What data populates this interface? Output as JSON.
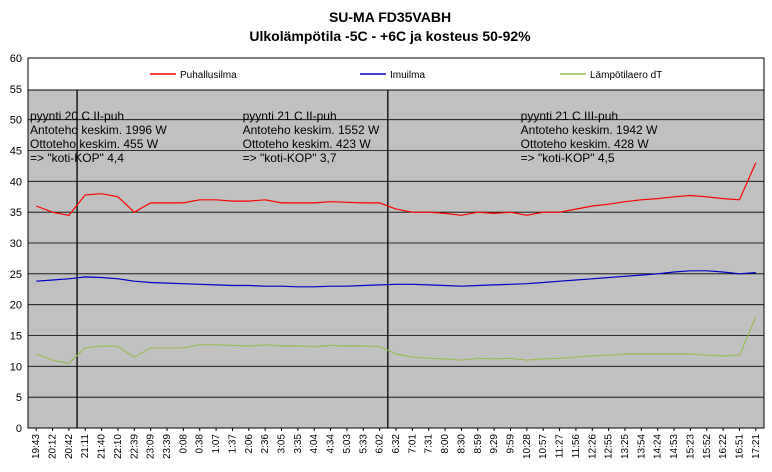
{
  "chart_data": {
    "type": "line",
    "title": "SU-MA FD35VABH",
    "subtitle": "Ulkolämpötila -5C - +6C ja kosteus 50-92%",
    "ylim": [
      0,
      60
    ],
    "yticks": [
      0,
      5,
      10,
      15,
      20,
      25,
      30,
      35,
      40,
      45,
      50,
      55,
      60
    ],
    "grid": true,
    "legend_placement": "top",
    "x_tick_labels": [
      "19:43",
      "20:12",
      "20:42",
      "21:11",
      "21:40",
      "22:10",
      "22:39",
      "23:09",
      "23:39",
      "0:08",
      "0:38",
      "1:07",
      "1:37",
      "2:06",
      "2:36",
      "3:05",
      "3:35",
      "4:04",
      "4:34",
      "5:03",
      "5:33",
      "6:02",
      "6:32",
      "7:01",
      "7:31",
      "8:00",
      "8:30",
      "8:59",
      "9:29",
      "9:59",
      "10:28",
      "10:57",
      "11:27",
      "11:56",
      "12:26",
      "12:55",
      "13:25",
      "13:54",
      "14:24",
      "14:53",
      "15:23",
      "15:52",
      "16:22",
      "16:51",
      "17:21"
    ],
    "period_dividers": [
      "21:11",
      "6:32"
    ],
    "annotations": [
      {
        "at": "19:43",
        "lines": [
          "pyynti 20 C II-puh",
          "Antoteho keskim. 1996 W",
          "Ottoteho keskim. 455 W",
          "=> \"koti-KOP\"  4,4"
        ]
      },
      {
        "at": "2:06",
        "lines": [
          "pyynti 21 C II-puh",
          "Antoteho keskim. 1552 W",
          "Ottoteho keskim. 423 W",
          "=> \"koti-KOP\" 3,7"
        ]
      },
      {
        "at": "10:28",
        "lines": [
          "pyynti 21 C III-puh",
          "Antoteho keskim. 1942 W",
          "Ottoteho keskim. 428 W",
          "=> \"koti-KOP\" 4,5"
        ]
      }
    ],
    "series": [
      {
        "name": "Puhallusilma",
        "color": "#ff0000",
        "x": [
          "19:43",
          "20:12",
          "20:42",
          "21:11",
          "21:40",
          "22:10",
          "22:39",
          "23:09",
          "23:39",
          "0:08",
          "0:38",
          "1:07",
          "1:37",
          "2:06",
          "2:36",
          "3:05",
          "3:35",
          "4:04",
          "4:34",
          "5:03",
          "5:33",
          "6:02",
          "6:32",
          "7:01",
          "7:31",
          "8:00",
          "8:30",
          "8:59",
          "9:29",
          "9:59",
          "10:28",
          "10:57",
          "11:27",
          "11:56",
          "12:26",
          "12:55",
          "13:25",
          "13:54",
          "14:24",
          "14:53",
          "15:23",
          "15:52",
          "16:22",
          "16:51",
          "17:21"
        ],
        "values": [
          36.0,
          35.0,
          34.5,
          37.8,
          38.0,
          37.5,
          35.0,
          36.5,
          36.5,
          36.5,
          37.0,
          37.0,
          36.8,
          36.8,
          37.0,
          36.5,
          36.5,
          36.5,
          36.7,
          36.6,
          36.5,
          36.5,
          35.5,
          35.0,
          35.0,
          34.8,
          34.5,
          35.0,
          34.8,
          35.0,
          34.5,
          35.0,
          35.0,
          35.5,
          36.0,
          36.3,
          36.7,
          37.0,
          37.2,
          37.5,
          37.7,
          37.5,
          37.2,
          37.0,
          43.0
        ]
      },
      {
        "name": "Imuilma",
        "color": "#0000cc",
        "x": [
          "19:43",
          "20:12",
          "20:42",
          "21:11",
          "21:40",
          "22:10",
          "22:39",
          "23:09",
          "23:39",
          "0:08",
          "0:38",
          "1:07",
          "1:37",
          "2:06",
          "2:36",
          "3:05",
          "3:35",
          "4:04",
          "4:34",
          "5:03",
          "5:33",
          "6:02",
          "6:32",
          "7:01",
          "7:31",
          "8:00",
          "8:30",
          "8:59",
          "9:29",
          "9:59",
          "10:28",
          "10:57",
          "11:27",
          "11:56",
          "12:26",
          "12:55",
          "13:25",
          "13:54",
          "14:24",
          "14:53",
          "15:23",
          "15:52",
          "16:22",
          "16:51",
          "17:21"
        ],
        "values": [
          23.8,
          24.0,
          24.2,
          24.5,
          24.4,
          24.2,
          23.8,
          23.6,
          23.5,
          23.4,
          23.3,
          23.2,
          23.1,
          23.1,
          23.0,
          23.0,
          22.9,
          22.9,
          23.0,
          23.0,
          23.1,
          23.2,
          23.3,
          23.3,
          23.2,
          23.1,
          23.0,
          23.1,
          23.2,
          23.3,
          23.4,
          23.6,
          23.8,
          24.0,
          24.2,
          24.4,
          24.6,
          24.8,
          25.0,
          25.3,
          25.5,
          25.5,
          25.3,
          25.0,
          25.2
        ]
      },
      {
        "name": "Lämpötilaero dT",
        "color": "#99bb55",
        "x": [
          "19:43",
          "20:12",
          "20:42",
          "21:11",
          "21:40",
          "22:10",
          "22:39",
          "23:09",
          "23:39",
          "0:08",
          "0:38",
          "1:07",
          "1:37",
          "2:06",
          "2:36",
          "3:05",
          "3:35",
          "4:04",
          "4:34",
          "5:03",
          "5:33",
          "6:02",
          "6:32",
          "7:01",
          "7:31",
          "8:00",
          "8:30",
          "8:59",
          "9:29",
          "9:59",
          "10:28",
          "10:57",
          "11:27",
          "11:56",
          "12:26",
          "12:55",
          "13:25",
          "13:54",
          "14:24",
          "14:53",
          "15:23",
          "15:52",
          "16:22",
          "16:51",
          "17:21"
        ],
        "values": [
          12.0,
          11.0,
          10.5,
          13.0,
          13.3,
          13.2,
          11.5,
          13.0,
          13.0,
          13.0,
          13.5,
          13.5,
          13.4,
          13.3,
          13.5,
          13.3,
          13.3,
          13.2,
          13.4,
          13.3,
          13.3,
          13.2,
          12.0,
          11.5,
          11.3,
          11.2,
          11.0,
          11.3,
          11.2,
          11.3,
          11.0,
          11.2,
          11.3,
          11.5,
          11.7,
          11.8,
          12.0,
          12.0,
          12.0,
          12.0,
          12.0,
          11.8,
          11.7,
          11.8,
          18.0
        ]
      }
    ]
  }
}
